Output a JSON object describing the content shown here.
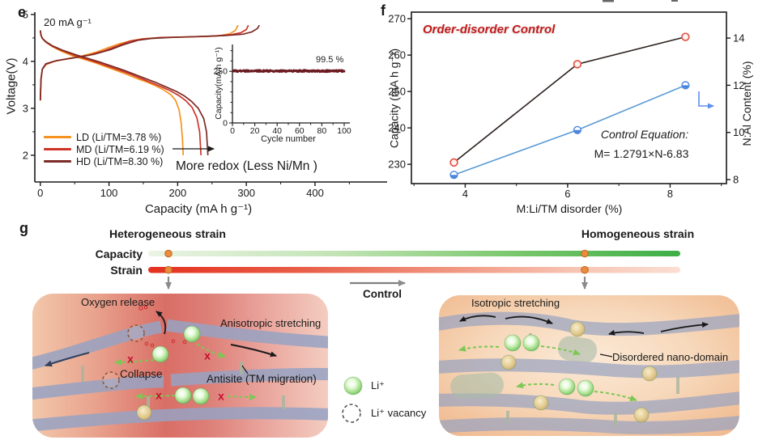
{
  "figure": {
    "panel_e": {
      "label": "e",
      "rate_annotation": "20 mA g⁻¹",
      "xlabel": "Capacity (mA h g⁻¹)",
      "ylabel": "Voltage(V)",
      "legend": [
        {
          "label": "LD (Li/TM=3.78 %)",
          "color": "#F6921E"
        },
        {
          "label": "MD (Li/TM=6.19 %)",
          "color": "#CE3426"
        },
        {
          "label": "HD (Li/TM=8.30 %)",
          "color": "#7C2B26"
        }
      ],
      "note": "More redox (Less Ni/Mn )",
      "inset": {
        "ylabel": "Capacity(mA h g⁻¹)",
        "xlabel": "Cycle number",
        "retention": "99.5 %"
      }
    },
    "panel_f": {
      "label": "f",
      "title": "Order-disorder Control",
      "xlabel": "M:Li/TM disorder (%)",
      "ylabel_left": "Capacity (mA h g⁻¹)",
      "ylabel_right": "N:Al Content (%)",
      "equation_line1": "Control Equation:",
      "equation_line2": "M= 1.2791×N-6.83"
    },
    "panel_g": {
      "label": "g",
      "left_title": "Heterogeneous strain",
      "right_title": "Homogeneous strain",
      "bar1_label": "Capacity",
      "bar2_label": "Strain",
      "control_label": "Control",
      "left_diagram_labels": [
        "Oxygen release",
        "Anisotropic stretching",
        "Collapse",
        "Antisite (TM migration)"
      ],
      "right_diagram_labels": [
        "Isotropic stretching",
        "Disordered nano-domain"
      ],
      "legend": {
        "li": "Li⁺",
        "vacancy": "Li⁺ vacancy"
      },
      "colors": {
        "capacity_bar_end": "#3DAE46",
        "strain_bar_start": "#E5301F",
        "dot_marker": "#EC8B3D"
      }
    }
  },
  "chart_data": [
    {
      "id": "e-main",
      "type": "line",
      "xlabel": "Capacity (mA h g⁻¹)",
      "ylabel": "Voltage(V)",
      "xlim": [
        -8,
        505
      ],
      "ylim": [
        1.43,
        5.05
      ],
      "xticks": [
        0,
        100,
        200,
        300,
        400
      ],
      "xticks_minor": [
        50,
        150,
        250,
        350,
        450
      ],
      "yticks": [
        2,
        3,
        4,
        5
      ],
      "yticks_minor": [
        2.5,
        3.5,
        4.5
      ],
      "series": [
        {
          "name": "LD charge",
          "color": "#F6921E",
          "points": [
            [
              0,
              3.17
            ],
            [
              1,
              3.62
            ],
            [
              3,
              3.83
            ],
            [
              8,
              3.93
            ],
            [
              20,
              4.0
            ],
            [
              40,
              4.06
            ],
            [
              62,
              4.12
            ],
            [
              82,
              4.2
            ],
            [
              100,
              4.3
            ],
            [
              116,
              4.38
            ],
            [
              132,
              4.44
            ],
            [
              148,
              4.48
            ],
            [
              168,
              4.5
            ],
            [
              205,
              4.52
            ],
            [
              240,
              4.53
            ],
            [
              262,
              4.55
            ],
            [
              276,
              4.59
            ],
            [
              284,
              4.66
            ],
            [
              288,
              4.77
            ]
          ]
        },
        {
          "name": "LD discharge",
          "color": "#F6921E",
          "points": [
            [
              0,
              4.66
            ],
            [
              1,
              4.56
            ],
            [
              3,
              4.49
            ],
            [
              8,
              4.41
            ],
            [
              18,
              4.31
            ],
            [
              30,
              4.22
            ],
            [
              45,
              4.13
            ],
            [
              60,
              4.06
            ],
            [
              78,
              3.98
            ],
            [
              95,
              3.89
            ],
            [
              110,
              3.81
            ],
            [
              125,
              3.73
            ],
            [
              140,
              3.64
            ],
            [
              155,
              3.56
            ],
            [
              168,
              3.48
            ],
            [
              180,
              3.39
            ],
            [
              190,
              3.29
            ],
            [
              197,
              3.17
            ],
            [
              202,
              2.97
            ],
            [
              205,
              2.7
            ],
            [
              207,
              2.35
            ],
            [
              208,
              2.0
            ]
          ]
        },
        {
          "name": "MD charge",
          "color": "#CE3426",
          "points": [
            [
              0,
              3.17
            ],
            [
              1,
              3.62
            ],
            [
              3,
              3.83
            ],
            [
              8,
              3.94
            ],
            [
              22,
              4.01
            ],
            [
              46,
              4.07
            ],
            [
              70,
              4.13
            ],
            [
              92,
              4.22
            ],
            [
              112,
              4.33
            ],
            [
              130,
              4.43
            ],
            [
              150,
              4.48
            ],
            [
              175,
              4.51
            ],
            [
              215,
              4.52
            ],
            [
              252,
              4.54
            ],
            [
              278,
              4.57
            ],
            [
              292,
              4.61
            ],
            [
              300,
              4.68
            ],
            [
              303,
              4.77
            ]
          ]
        },
        {
          "name": "MD discharge",
          "color": "#CE3426",
          "points": [
            [
              0,
              4.66
            ],
            [
              1,
              4.56
            ],
            [
              3,
              4.49
            ],
            [
              8,
              4.41
            ],
            [
              18,
              4.32
            ],
            [
              32,
              4.23
            ],
            [
              48,
              4.14
            ],
            [
              65,
              4.06
            ],
            [
              82,
              3.98
            ],
            [
              100,
              3.89
            ],
            [
              116,
              3.81
            ],
            [
              131,
              3.73
            ],
            [
              146,
              3.64
            ],
            [
              161,
              3.55
            ],
            [
              176,
              3.46
            ],
            [
              190,
              3.37
            ],
            [
              202,
              3.27
            ],
            [
              212,
              3.16
            ],
            [
              221,
              3.02
            ],
            [
              228,
              2.8
            ],
            [
              232,
              2.5
            ],
            [
              234,
              2.0
            ]
          ]
        },
        {
          "name": "HD charge",
          "color": "#7C2B26",
          "points": [
            [
              0,
              3.17
            ],
            [
              1,
              3.62
            ],
            [
              3,
              3.84
            ],
            [
              8,
              3.95
            ],
            [
              24,
              4.02
            ],
            [
              50,
              4.08
            ],
            [
              78,
              4.15
            ],
            [
              102,
              4.25
            ],
            [
              122,
              4.36
            ],
            [
              142,
              4.45
            ],
            [
              162,
              4.49
            ],
            [
              190,
              4.51
            ],
            [
              230,
              4.53
            ],
            [
              268,
              4.55
            ],
            [
              295,
              4.58
            ],
            [
              308,
              4.63
            ],
            [
              316,
              4.7
            ],
            [
              319,
              4.77
            ]
          ]
        },
        {
          "name": "HD discharge",
          "color": "#7C2B26",
          "points": [
            [
              0,
              4.66
            ],
            [
              1,
              4.56
            ],
            [
              3,
              4.49
            ],
            [
              8,
              4.42
            ],
            [
              18,
              4.33
            ],
            [
              34,
              4.23
            ],
            [
              52,
              4.14
            ],
            [
              70,
              4.06
            ],
            [
              88,
              3.98
            ],
            [
              106,
              3.89
            ],
            [
              122,
              3.81
            ],
            [
              138,
              3.72
            ],
            [
              154,
              3.63
            ],
            [
              170,
              3.54
            ],
            [
              184,
              3.45
            ],
            [
              198,
              3.36
            ],
            [
              210,
              3.26
            ],
            [
              220,
              3.15
            ],
            [
              230,
              3.0
            ],
            [
              238,
              2.78
            ],
            [
              242,
              2.5
            ],
            [
              244,
              2.0
            ]
          ]
        }
      ]
    },
    {
      "id": "e-inset",
      "type": "scatter",
      "xlabel": "Cycle number",
      "ylabel": "Capacity(mA h g⁻¹)",
      "xlim": [
        0,
        100
      ],
      "ylim": [
        0,
        380
      ],
      "xticks": [
        0,
        20,
        40,
        60,
        80,
        100
      ],
      "xticks_minor": [
        10,
        30,
        50,
        70,
        90
      ],
      "yticks": [
        0,
        250
      ],
      "yticks_minor": [
        50,
        100,
        150,
        200,
        300,
        350
      ],
      "cycles": 100,
      "capacity_mean": 252,
      "capacity_jitter": 5,
      "retention_label": "99.5 %",
      "color": "#6B1A20"
    },
    {
      "id": "f",
      "type": "line",
      "title": "Order-disorder Control",
      "xlabel": "M:Li/TM disorder (%)",
      "ylabel_left": "Capacity (mA h g⁻¹)",
      "ylabel_right": "N:Al Content (%)",
      "xlim": [
        2.95,
        9.1
      ],
      "xticks": [
        4,
        6,
        8
      ],
      "xticks_minor": [
        3,
        5,
        7,
        9
      ],
      "ylim_left": [
        224.7,
        271.8
      ],
      "yticks_left": [
        230,
        240,
        250,
        260,
        270
      ],
      "ylim_right": [
        7.83,
        15.1
      ],
      "yticks_right": [
        8,
        10,
        12,
        14
      ],
      "x": [
        3.78,
        6.19,
        8.3
      ],
      "series": [
        {
          "name": "Capacity",
          "axis": "left",
          "line_color": "#2B211E",
          "marker": "open-circle",
          "marker_color": "#E2574A",
          "values": [
            230.5,
            257.5,
            265
          ]
        },
        {
          "name": "N:Al Content",
          "axis": "right",
          "line_color": "#5B9BD5",
          "marker": "half-circle",
          "marker_color": "#4C86DD",
          "values": [
            8.2,
            10.1,
            12.0
          ]
        }
      ],
      "annotation_line1": "Control Equation:",
      "annotation_line2": "M= 1.2791×N-6.83"
    }
  ]
}
